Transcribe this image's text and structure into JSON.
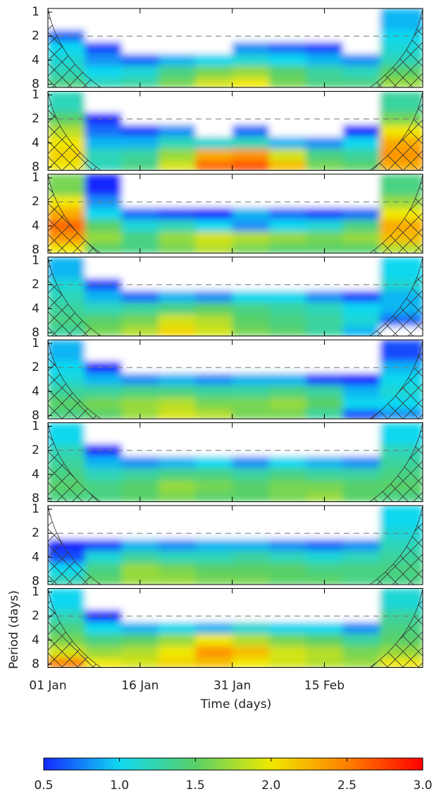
{
  "chart_data": {
    "type": "heatmap",
    "x_label": "Time (days)",
    "y_label": "Period (days)",
    "xlim": [
      0,
      61
    ],
    "xticks": [
      {
        "value": 0,
        "label": "01 Jan"
      },
      {
        "value": 15,
        "label": "16 Jan"
      },
      {
        "value": 30,
        "label": "31 Jan"
      },
      {
        "value": 45,
        "label": "15 Feb"
      }
    ],
    "ylim": [
      0.9,
      8.8
    ],
    "yticks": [
      1,
      2,
      4,
      8
    ],
    "y_scale": "log",
    "y_inverted": true,
    "reference_line": 2,
    "x": [
      3,
      9,
      15,
      21,
      27,
      33,
      39,
      45,
      51,
      57
    ],
    "y": [
      1.4,
      2,
      2.8,
      4,
      5.6,
      8
    ],
    "panels": [
      {
        "z": [
          [
            0.4,
            0.4,
            0.4,
            0.4,
            0.4,
            0.4,
            0.4,
            0.4,
            0.4,
            0.9
          ],
          [
            0.7,
            0.4,
            0.4,
            0.4,
            0.4,
            0.4,
            0.4,
            0.4,
            0.4,
            1.0
          ],
          [
            1.0,
            0.6,
            0.4,
            0.4,
            0.4,
            0.8,
            0.7,
            0.6,
            0.4,
            1.1
          ],
          [
            1.1,
            0.8,
            0.7,
            0.9,
            1.0,
            1.1,
            1.0,
            0.9,
            0.8,
            1.2
          ],
          [
            1.2,
            1.0,
            1.1,
            1.4,
            1.6,
            1.7,
            1.5,
            1.3,
            1.2,
            1.5
          ],
          [
            1.4,
            1.2,
            1.3,
            1.6,
            1.9,
            2.0,
            1.6,
            1.4,
            1.4,
            1.7
          ]
        ]
      },
      {
        "z": [
          [
            1.2,
            0.4,
            0.4,
            0.4,
            0.4,
            0.4,
            0.4,
            0.4,
            0.4,
            1.3
          ],
          [
            1.5,
            0.5,
            0.4,
            0.4,
            0.4,
            0.4,
            0.4,
            0.4,
            0.4,
            1.6
          ],
          [
            1.8,
            0.7,
            0.6,
            0.8,
            0.4,
            0.7,
            0.4,
            0.4,
            0.5,
            2.0
          ],
          [
            2.0,
            0.9,
            0.9,
            1.2,
            1.1,
            1.2,
            0.9,
            0.8,
            1.0,
            2.3
          ],
          [
            2.1,
            1.2,
            1.3,
            1.7,
            2.3,
            2.4,
            1.9,
            1.4,
            1.3,
            2.4
          ],
          [
            2.0,
            1.2,
            1.4,
            1.9,
            2.6,
            2.7,
            2.2,
            1.6,
            1.5,
            2.3
          ]
        ]
      },
      {
        "z": [
          [
            1.6,
            0.5,
            0.4,
            0.4,
            0.4,
            0.4,
            0.4,
            0.4,
            0.4,
            1.4
          ],
          [
            2.0,
            0.8,
            0.4,
            0.4,
            0.4,
            0.4,
            0.4,
            0.4,
            0.4,
            1.7
          ],
          [
            2.3,
            1.0,
            0.7,
            0.6,
            0.5,
            0.9,
            0.7,
            0.6,
            0.7,
            2.0
          ],
          [
            2.6,
            1.5,
            1.1,
            1.2,
            1.0,
            0.8,
            1.0,
            1.1,
            1.4,
            2.3
          ],
          [
            2.4,
            1.7,
            1.4,
            1.7,
            1.9,
            1.8,
            1.7,
            1.6,
            1.7,
            2.2
          ],
          [
            2.0,
            1.5,
            1.4,
            1.6,
            1.8,
            1.6,
            1.5,
            1.5,
            1.5,
            1.8
          ]
        ]
      },
      {
        "z": [
          [
            0.9,
            0.4,
            0.4,
            0.4,
            0.4,
            0.4,
            0.4,
            0.4,
            0.4,
            1.0
          ],
          [
            1.1,
            0.6,
            0.4,
            0.4,
            0.4,
            0.4,
            0.4,
            0.4,
            0.4,
            1.1
          ],
          [
            1.2,
            0.9,
            0.7,
            0.9,
            0.8,
            1.0,
            1.0,
            0.8,
            0.6,
            0.9
          ],
          [
            1.3,
            1.2,
            1.3,
            1.4,
            1.5,
            1.4,
            1.3,
            1.2,
            1.0,
            0.9
          ],
          [
            1.4,
            1.5,
            1.6,
            1.9,
            1.8,
            1.5,
            1.4,
            1.3,
            1.1,
            0.7
          ],
          [
            1.3,
            1.6,
            1.8,
            2.1,
            1.9,
            1.6,
            1.5,
            1.3,
            0.9,
            0.4
          ]
        ]
      },
      {
        "z": [
          [
            0.9,
            0.4,
            0.4,
            0.4,
            0.4,
            0.4,
            0.4,
            0.4,
            0.4,
            0.6
          ],
          [
            1.0,
            0.5,
            0.4,
            0.4,
            0.4,
            0.4,
            0.4,
            0.4,
            0.4,
            0.9
          ],
          [
            1.1,
            0.9,
            0.8,
            0.9,
            0.8,
            0.9,
            0.9,
            0.6,
            0.5,
            1.0
          ],
          [
            1.3,
            1.3,
            1.4,
            1.4,
            1.3,
            1.3,
            1.4,
            1.3,
            0.9,
            1.1
          ],
          [
            1.5,
            1.6,
            1.7,
            1.8,
            1.6,
            1.6,
            1.7,
            1.5,
            1.0,
            1.0
          ],
          [
            1.4,
            1.5,
            1.7,
            1.9,
            1.8,
            1.6,
            1.6,
            1.3,
            0.6,
            0.8
          ]
        ]
      },
      {
        "z": [
          [
            1.0,
            0.4,
            0.4,
            0.4,
            0.4,
            0.4,
            0.4,
            0.4,
            0.4,
            1.0
          ],
          [
            1.2,
            0.5,
            0.4,
            0.4,
            0.4,
            0.4,
            0.4,
            0.4,
            0.4,
            1.2
          ],
          [
            1.3,
            0.9,
            0.8,
            0.9,
            1.0,
            0.8,
            1.0,
            0.9,
            0.8,
            1.3
          ],
          [
            1.4,
            1.2,
            1.3,
            1.4,
            1.4,
            1.3,
            1.4,
            1.3,
            1.3,
            1.4
          ],
          [
            1.5,
            1.4,
            1.5,
            1.7,
            1.6,
            1.5,
            1.6,
            1.6,
            1.5,
            1.5
          ],
          [
            1.4,
            1.4,
            1.5,
            1.6,
            1.5,
            1.5,
            1.6,
            1.7,
            1.5,
            1.4
          ]
        ]
      },
      {
        "z": [
          [
            0.4,
            0.4,
            0.4,
            0.4,
            0.4,
            0.4,
            0.4,
            0.4,
            0.4,
            1.0
          ],
          [
            0.4,
            0.4,
            0.4,
            0.4,
            0.4,
            0.4,
            0.4,
            0.4,
            0.4,
            1.1
          ],
          [
            0.5,
            0.6,
            0.9,
            0.8,
            0.9,
            0.9,
            0.8,
            0.7,
            0.8,
            1.2
          ],
          [
            0.6,
            1.1,
            1.3,
            1.2,
            1.2,
            1.3,
            1.2,
            1.1,
            1.2,
            1.3
          ],
          [
            1.0,
            1.4,
            1.7,
            1.6,
            1.5,
            1.5,
            1.5,
            1.4,
            1.4,
            1.4
          ],
          [
            1.2,
            1.5,
            1.7,
            1.7,
            1.6,
            1.6,
            1.5,
            1.5,
            1.4,
            1.4
          ]
        ]
      },
      {
        "z": [
          [
            1.0,
            0.4,
            0.4,
            0.4,
            0.4,
            0.4,
            0.4,
            0.4,
            0.4,
            1.1
          ],
          [
            1.2,
            0.5,
            0.4,
            0.4,
            0.4,
            0.4,
            0.4,
            0.4,
            0.4,
            1.3
          ],
          [
            1.4,
            1.0,
            0.9,
            1.0,
            0.9,
            1.1,
            1.0,
            1.0,
            0.8,
            1.4
          ],
          [
            1.6,
            1.4,
            1.5,
            1.7,
            2.0,
            1.8,
            1.6,
            1.5,
            1.3,
            1.5
          ],
          [
            1.9,
            1.7,
            1.8,
            2.0,
            2.4,
            2.2,
            1.9,
            1.8,
            1.6,
            1.7
          ],
          [
            2.5,
            2.0,
            1.9,
            2.1,
            2.2,
            2.0,
            1.9,
            1.8,
            1.7,
            2.0
          ]
        ]
      }
    ],
    "colorbar": {
      "clim": [
        0.5,
        3.0
      ],
      "cticks": [
        0.5,
        {
          "value": 1,
          "label": "1.0"
        },
        1.5,
        {
          "value": 2,
          "label": "2.0"
        },
        2.5,
        {
          "value": 3,
          "label": "3.0"
        }
      ],
      "colors": [
        "#1428ff",
        "#10d8f0",
        "#58d068",
        "#f0e800",
        "#ff8000",
        "#ff0000"
      ]
    }
  }
}
